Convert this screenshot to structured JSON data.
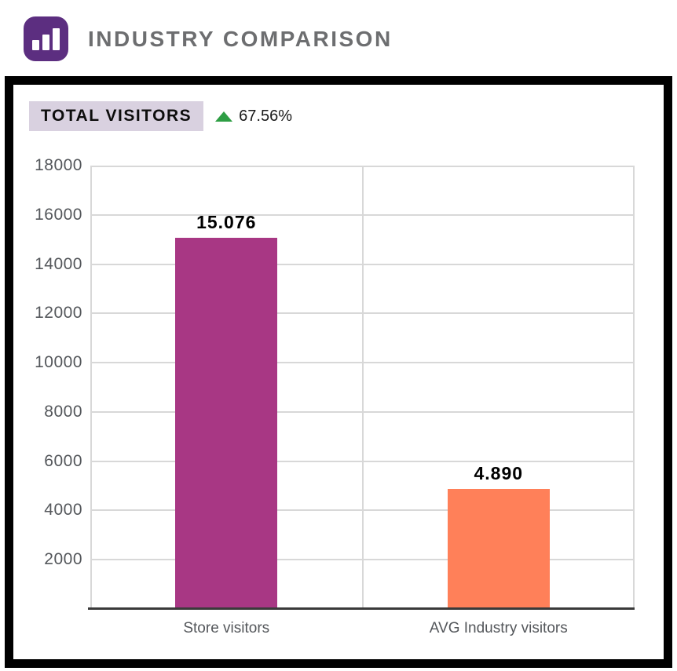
{
  "header": {
    "title": "INDUSTRY COMPARISON"
  },
  "panel": {
    "metric_label": "TOTAL VISITORS",
    "change": {
      "direction": "up",
      "value": "67.56%"
    }
  },
  "chart_data": {
    "type": "bar",
    "title": "",
    "xlabel": "",
    "ylabel": "",
    "categories": [
      "Store visitors",
      "AVG Industry visitors"
    ],
    "values": [
      15076,
      4890
    ],
    "value_labels": [
      "15.076",
      "4.890"
    ],
    "series_colors": [
      "#a83784",
      "#ff8059"
    ],
    "ylim": [
      0,
      18000
    ],
    "yticks": [
      2000,
      4000,
      6000,
      8000,
      10000,
      12000,
      14000,
      16000,
      18000
    ],
    "grid": true,
    "legend": "none"
  },
  "colors": {
    "icon_bg": "#5c2e80",
    "title_text": "#6d6e70",
    "badge_bg": "#d9d1e0",
    "positive_green": "#2e9e44",
    "gridline": "#d8d8d8",
    "axis_text": "#54575b",
    "baseline": "#3a3a3a"
  }
}
